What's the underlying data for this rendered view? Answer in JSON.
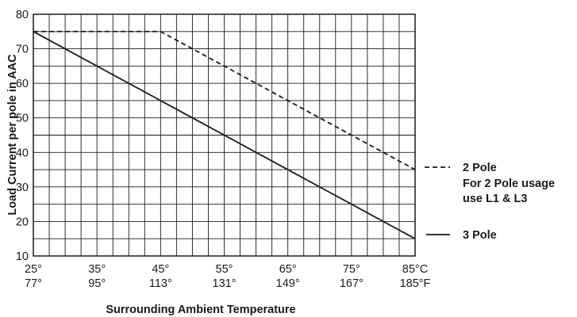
{
  "chart_data": {
    "type": "line",
    "xlabel": "Surrounding Ambient Temperature",
    "ylabel": "Load Current per pole in AAC",
    "xlim": [
      25,
      85
    ],
    "ylim": [
      10,
      80
    ],
    "x_ticks_c": [
      "25°",
      "35°",
      "45°",
      "55°",
      "65°",
      "75°",
      "85°C"
    ],
    "x_ticks_f": [
      "77°",
      "95°",
      "113°",
      "131°",
      "149°",
      "167°",
      "185°F"
    ],
    "y_ticks": [
      "10",
      "20",
      "30",
      "40",
      "50",
      "60",
      "70",
      "80"
    ],
    "grid": true,
    "series": [
      {
        "name": "2 Pole",
        "style": "dashed",
        "x": [
          25,
          45,
          85
        ],
        "y": [
          75,
          75,
          35
        ]
      },
      {
        "name": "3 Pole",
        "style": "solid",
        "x": [
          25,
          85
        ],
        "y": [
          75,
          15
        ]
      }
    ],
    "legend": {
      "items": [
        {
          "label": "2 Pole",
          "note_lines": [
            "For 2 Pole usage",
            "use L1 & L3"
          ],
          "style": "dashed"
        },
        {
          "label": "3 Pole",
          "note_lines": [],
          "style": "solid"
        }
      ]
    }
  }
}
